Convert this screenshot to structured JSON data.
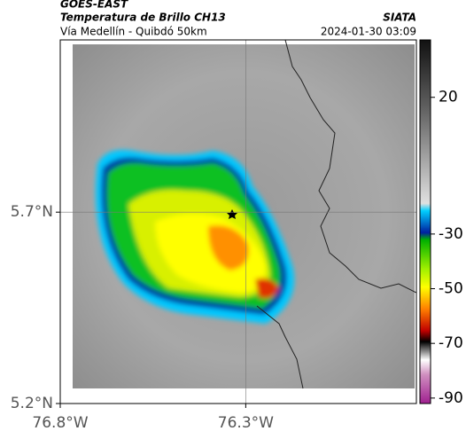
{
  "header": {
    "source": "GOES-EAST",
    "product": "Temperatura de Brillo CH13",
    "region": "Vía Medellín - Quibdó 50km",
    "brand": "SIATA",
    "timestamp": "2024-01-30 03:09"
  },
  "map": {
    "xlim": [
      -76.8,
      -75.84
    ],
    "ylim": [
      5.2,
      6.15
    ],
    "xticks": [
      {
        "value": -76.8,
        "label": "76.8°W"
      },
      {
        "value": -76.3,
        "label": "76.3°W"
      }
    ],
    "yticks": [
      {
        "value": 5.2,
        "label": "5.2°N"
      },
      {
        "value": 5.7,
        "label": "5.7°N"
      }
    ],
    "grid": true
  },
  "colorbar": {
    "lim": [
      -92,
      41
    ],
    "ticks": [
      20,
      -30,
      -50,
      -70,
      -90
    ]
  }
}
